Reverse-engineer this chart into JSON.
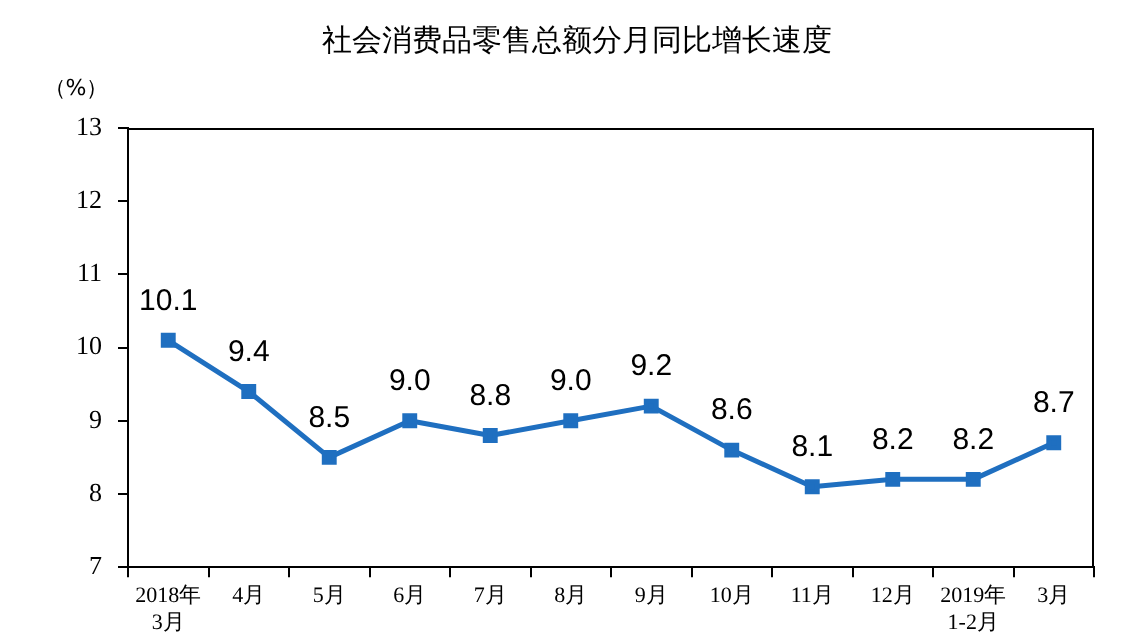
{
  "chart_data": {
    "type": "line",
    "title": "社会消费品零售总额分月同比增长速度",
    "ylabel": "（%）",
    "categories": [
      "2018年\n3月",
      "4月",
      "5月",
      "6月",
      "7月",
      "8月",
      "9月",
      "10月",
      "11月",
      "12月",
      "2019年\n1-2月",
      "3月"
    ],
    "series": [
      {
        "color": "#1f6fc0",
        "values": [
          10.1,
          9.4,
          8.5,
          9.0,
          8.8,
          9.0,
          9.2,
          8.6,
          8.1,
          8.2,
          8.2,
          8.7
        ],
        "value_labels": [
          "10.1",
          "9.4",
          "8.5",
          "9.0",
          "8.8",
          "9.0",
          "9.2",
          "8.6",
          "8.1",
          "8.2",
          "8.2",
          "8.7"
        ]
      }
    ],
    "ylim": [
      7,
      13
    ],
    "yticks": [
      7,
      8,
      9,
      10,
      11,
      12,
      13
    ],
    "grid": false,
    "legend": false,
    "marker": "square",
    "line_style": "solid"
  }
}
